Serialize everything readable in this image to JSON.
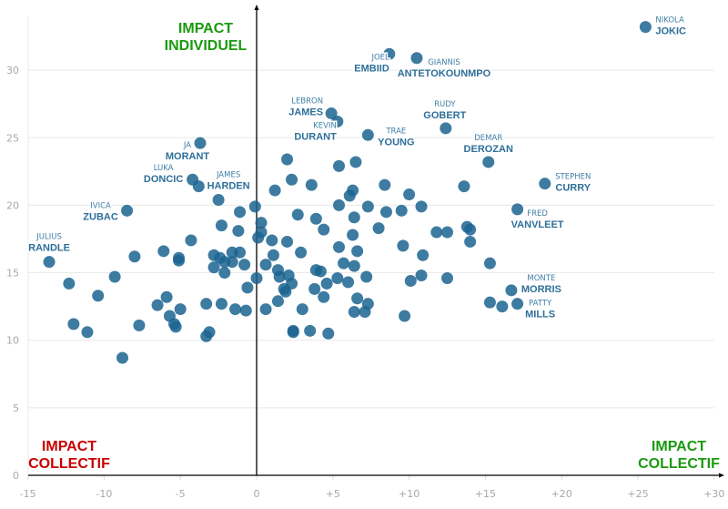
{
  "chart_data": {
    "type": "scatter",
    "title": "",
    "xlabel": "",
    "ylabel": "",
    "xlim": [
      -15,
      30
    ],
    "ylim": [
      0,
      34
    ],
    "x_ticks": [
      "-15",
      "-10",
      "-5",
      "0",
      "+5",
      "+10",
      "+15",
      "+20",
      "+25",
      "+30"
    ],
    "x_tick_values": [
      -15,
      -10,
      -5,
      0,
      5,
      10,
      15,
      20,
      25,
      30
    ],
    "y_ticks": [
      "0",
      "5",
      "10",
      "15",
      "20",
      "25",
      "30"
    ],
    "y_tick_values": [
      0,
      5,
      10,
      15,
      20,
      25,
      30
    ],
    "grid": "horizontal",
    "colors": {
      "dot": "#1b6491",
      "label": "#2e6f99",
      "green": "#1a9a0f",
      "red": "#c80000"
    },
    "quadrant_labels": {
      "top": {
        "line1": "IMPACT",
        "line2": "INDIVIDUEL",
        "color": "#1a9a0f"
      },
      "bottom_left": {
        "line1": "IMPACT",
        "line2": "COLLECTIF",
        "color": "#c80000"
      },
      "bottom_right": {
        "line1": "IMPACT",
        "line2": "COLLECTIF",
        "color": "#1a9a0f"
      }
    },
    "labeled_points": [
      {
        "first": "NIKOLA",
        "last": "JOKIC",
        "x": 25.5,
        "y": 33.2
      },
      {
        "first": "JOEL",
        "last": "EMBIID",
        "x": 8.7,
        "y": 31.2
      },
      {
        "first": "GIANNIS",
        "last": "ANTETOKOUNMPO",
        "x": 10.5,
        "y": 30.9
      },
      {
        "first": "LEBRON",
        "last": "JAMES",
        "x": 4.9,
        "y": 26.8
      },
      {
        "first": "KEVIN",
        "last": "DURANT",
        "x": 5.3,
        "y": 26.2
      },
      {
        "first": "TRAE",
        "last": "YOUNG",
        "x": 7.3,
        "y": 25.2
      },
      {
        "first": "RUDY",
        "last": "GOBERT",
        "x": 12.4,
        "y": 25.7
      },
      {
        "first": "DEMAR",
        "last": "DEROZAN",
        "x": 15.2,
        "y": 23.2
      },
      {
        "first": "STEPHEN",
        "last": "CURRY",
        "x": 18.9,
        "y": 21.6
      },
      {
        "first": "FRED",
        "last": "VANVLEET",
        "x": 17.1,
        "y": 19.7
      },
      {
        "first": "JA",
        "last": "MORANT",
        "x": -3.7,
        "y": 24.6
      },
      {
        "first": "LUKA",
        "last": "DONCIC",
        "x": -4.2,
        "y": 21.9
      },
      {
        "first": "JAMES",
        "last": "HARDEN",
        "x": -2.5,
        "y": 20.4
      },
      {
        "first": "IVICA",
        "last": "ZUBAC",
        "x": -8.5,
        "y": 19.6
      },
      {
        "first": "JULIUS",
        "last": "RANDLE",
        "x": -13.6,
        "y": 15.8
      },
      {
        "first": "MONTE",
        "last": "MORRIS",
        "x": 16.7,
        "y": 13.7
      },
      {
        "first": "PATTY",
        "last": "MILLS",
        "x": 17.1,
        "y": 12.7
      }
    ],
    "points": [
      [
        -3.8,
        21.4
      ],
      [
        6.5,
        23.2
      ],
      [
        5.4,
        22.9
      ],
      [
        8.4,
        21.5
      ],
      [
        6.3,
        21.1
      ],
      [
        6.1,
        20.7
      ],
      [
        5.4,
        20.0
      ],
      [
        7.3,
        19.9
      ],
      [
        8.5,
        19.5
      ],
      [
        9.5,
        19.6
      ],
      [
        10.0,
        20.8
      ],
      [
        10.8,
        19.9
      ],
      [
        13.6,
        21.4
      ],
      [
        6.4,
        19.1
      ],
      [
        8.0,
        18.3
      ],
      [
        6.3,
        17.8
      ],
      [
        11.8,
        18.0
      ],
      [
        12.5,
        18.0
      ],
      [
        13.8,
        18.4
      ],
      [
        14.0,
        18.2
      ],
      [
        14.0,
        17.3
      ],
      [
        5.4,
        16.9
      ],
      [
        6.6,
        16.6
      ],
      [
        9.6,
        17.0
      ],
      [
        10.9,
        16.3
      ],
      [
        5.7,
        15.7
      ],
      [
        6.4,
        15.5
      ],
      [
        15.3,
        15.7
      ],
      [
        5.3,
        14.6
      ],
      [
        6.0,
        14.3
      ],
      [
        7.2,
        14.7
      ],
      [
        10.1,
        14.4
      ],
      [
        10.8,
        14.8
      ],
      [
        12.5,
        14.6
      ],
      [
        6.6,
        13.1
      ],
      [
        7.3,
        12.7
      ],
      [
        6.4,
        12.1
      ],
      [
        7.1,
        12.1
      ],
      [
        9.7,
        11.8
      ],
      [
        15.3,
        12.8
      ],
      [
        16.1,
        12.5
      ],
      [
        2.0,
        23.4
      ],
      [
        2.3,
        21.9
      ],
      [
        3.6,
        21.5
      ],
      [
        1.2,
        21.1
      ],
      [
        -0.1,
        19.9
      ],
      [
        -1.1,
        19.5
      ],
      [
        2.7,
        19.3
      ],
      [
        3.9,
        19.0
      ],
      [
        0.3,
        18.7
      ],
      [
        -2.3,
        18.5
      ],
      [
        -1.2,
        18.1
      ],
      [
        4.4,
        18.2
      ],
      [
        0.3,
        18.0
      ],
      [
        0.1,
        17.6
      ],
      [
        -4.3,
        17.4
      ],
      [
        1.0,
        17.4
      ],
      [
        2.0,
        17.3
      ],
      [
        -6.1,
        16.6
      ],
      [
        -5.1,
        16.1
      ],
      [
        -5.1,
        15.9
      ],
      [
        -2.8,
        16.3
      ],
      [
        -2.4,
        16.1
      ],
      [
        -1.6,
        16.5
      ],
      [
        -1.1,
        16.5
      ],
      [
        -1.6,
        15.8
      ],
      [
        -2.1,
        15.8
      ],
      [
        -0.8,
        15.6
      ],
      [
        -2.8,
        15.4
      ],
      [
        -2.1,
        15.0
      ],
      [
        0.6,
        15.6
      ],
      [
        2.9,
        16.5
      ],
      [
        1.1,
        16.3
      ],
      [
        1.4,
        15.2
      ],
      [
        1.5,
        14.7
      ],
      [
        2.1,
        14.8
      ],
      [
        2.3,
        14.2
      ],
      [
        3.9,
        15.2
      ],
      [
        4.2,
        15.1
      ],
      [
        4.6,
        14.2
      ],
      [
        0.0,
        14.6
      ],
      [
        -0.6,
        13.9
      ],
      [
        1.8,
        13.8
      ],
      [
        1.9,
        13.6
      ],
      [
        3.8,
        13.8
      ],
      [
        4.4,
        13.2
      ],
      [
        1.4,
        12.9
      ],
      [
        3.0,
        12.3
      ],
      [
        0.6,
        12.3
      ],
      [
        -3.3,
        12.7
      ],
      [
        -2.3,
        12.7
      ],
      [
        -1.4,
        12.3
      ],
      [
        -0.7,
        12.2
      ],
      [
        -5.9,
        13.2
      ],
      [
        -5.0,
        12.3
      ],
      [
        -6.5,
        12.6
      ],
      [
        -5.7,
        11.8
      ],
      [
        -5.4,
        11.2
      ],
      [
        -5.3,
        11.0
      ],
      [
        -3.1,
        10.6
      ],
      [
        -3.3,
        10.3
      ],
      [
        2.4,
        10.7
      ],
      [
        2.4,
        10.6
      ],
      [
        3.5,
        10.7
      ],
      [
        4.7,
        10.5
      ],
      [
        -12.3,
        14.2
      ],
      [
        -12.0,
        11.2
      ],
      [
        -11.1,
        10.6
      ],
      [
        -10.4,
        13.3
      ],
      [
        -9.3,
        14.7
      ],
      [
        -8.0,
        16.2
      ],
      [
        -8.8,
        8.7
      ],
      [
        -7.7,
        11.1
      ]
    ]
  }
}
